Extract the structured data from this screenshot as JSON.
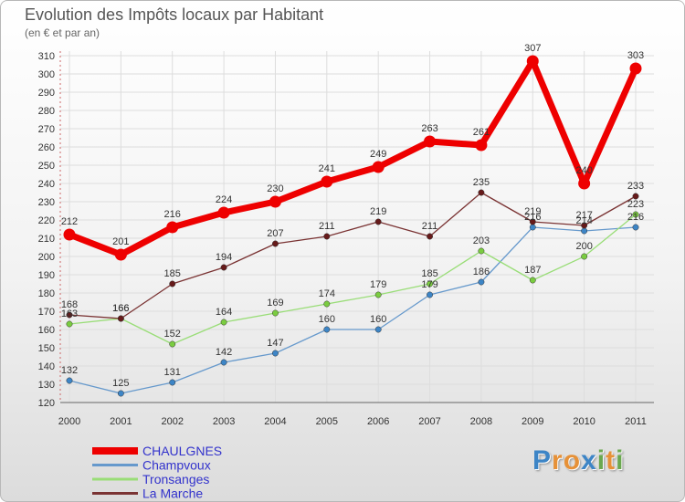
{
  "title": "Evolution des Impôts locaux par Habitant",
  "subtitle": "(en € et par an)",
  "logo": "Proxiti",
  "chart_data": {
    "type": "line",
    "title": "Evolution des Impôts locaux par Habitant",
    "subtitle": "(en € et par an)",
    "xlabel": "",
    "ylabel": "",
    "x": [
      "2000",
      "2001",
      "2002",
      "2003",
      "2004",
      "2005",
      "2006",
      "2007",
      "2008",
      "2009",
      "2010",
      "2011"
    ],
    "ylim": [
      120,
      310
    ],
    "yticks": [
      120,
      130,
      140,
      150,
      160,
      170,
      180,
      190,
      200,
      210,
      220,
      230,
      240,
      250,
      260,
      270,
      280,
      290,
      300,
      310
    ],
    "grid": true,
    "legend_position": "bottom-left",
    "series": [
      {
        "name": "CHAULGNES",
        "color": "#ee0000",
        "marker": "#ee0000",
        "emphasis": true,
        "values": [
          212,
          201,
          216,
          224,
          230,
          241,
          249,
          263,
          261,
          307,
          240,
          303
        ]
      },
      {
        "name": "Champvoux",
        "color": "#6699cc",
        "marker": "#3d85c6",
        "emphasis": false,
        "values": [
          132,
          125,
          131,
          142,
          147,
          160,
          160,
          179,
          186,
          216,
          214,
          216
        ]
      },
      {
        "name": "Tronsanges",
        "color": "#99dd77",
        "marker": "#7acc40",
        "emphasis": false,
        "values": [
          163,
          166,
          152,
          164,
          169,
          174,
          179,
          185,
          203,
          187,
          200,
          223
        ]
      },
      {
        "name": "La Marche",
        "color": "#7a3333",
        "marker": "#661a1a",
        "emphasis": false,
        "values": [
          168,
          166,
          185,
          194,
          207,
          211,
          219,
          211,
          235,
          219,
          217,
          233
        ]
      }
    ]
  }
}
